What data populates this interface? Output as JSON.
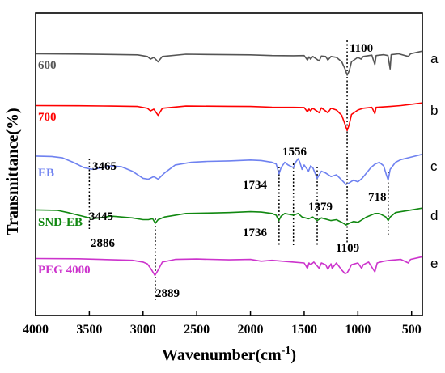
{
  "chart_data": {
    "type": "line",
    "title": "",
    "xlabel": "Wavenumber(cm",
    "xlabel_sup": "-1",
    "xlabel_close": ")",
    "ylabel": "Transmittance(%)",
    "xlim": [
      4000,
      400
    ],
    "x_reversed": true,
    "xticks": [
      4000,
      3500,
      3000,
      2500,
      2000,
      1500,
      1000,
      500
    ],
    "grid": false,
    "series": [
      {
        "name": "600",
        "letter": "a",
        "color": "#555555",
        "points": [
          [
            4000,
            0.5
          ],
          [
            3600,
            0.47
          ],
          [
            3300,
            0.43
          ],
          [
            3050,
            0.38
          ],
          [
            2960,
            0.2
          ],
          [
            2930,
            -0.1
          ],
          [
            2900,
            0.1
          ],
          [
            2860,
            -0.4
          ],
          [
            2820,
            0.2
          ],
          [
            2600,
            0.45
          ],
          [
            2200,
            0.4
          ],
          [
            2000,
            0.38
          ],
          [
            1800,
            0.3
          ],
          [
            1600,
            0.28
          ],
          [
            1500,
            0.3
          ],
          [
            1470,
            -0.2
          ],
          [
            1455,
            0.15
          ],
          [
            1440,
            -0.1
          ],
          [
            1420,
            0.2
          ],
          [
            1360,
            -0.3
          ],
          [
            1340,
            0.25
          ],
          [
            1300,
            0.2
          ],
          [
            1280,
            -0.2
          ],
          [
            1250,
            0.2
          ],
          [
            1200,
            0.1
          ],
          [
            1150,
            -0.4
          ],
          [
            1120,
            -1.2
          ],
          [
            1100,
            -1.9
          ],
          [
            1080,
            -1.4
          ],
          [
            1060,
            -0.4
          ],
          [
            1000,
            0.1
          ],
          [
            970,
            -0.1
          ],
          [
            950,
            0.2
          ],
          [
            870,
            0.35
          ],
          [
            842,
            -0.7
          ],
          [
            830,
            0.3
          ],
          [
            760,
            0.4
          ],
          [
            720,
            0.3
          ],
          [
            700,
            -1.2
          ],
          [
            690,
            0.4
          ],
          [
            620,
            0.5
          ],
          [
            530,
            0.2
          ],
          [
            510,
            0.5
          ],
          [
            400,
            0.8
          ]
        ]
      },
      {
        "name": "700",
        "letter": "b",
        "color": "#ff0000",
        "points": [
          [
            4000,
            0.5
          ],
          [
            3600,
            0.48
          ],
          [
            3300,
            0.45
          ],
          [
            3050,
            0.4
          ],
          [
            2960,
            0.2
          ],
          [
            2930,
            -0.1
          ],
          [
            2900,
            0.1
          ],
          [
            2860,
            -0.6
          ],
          [
            2820,
            0.2
          ],
          [
            2600,
            0.45
          ],
          [
            2200,
            0.42
          ],
          [
            2000,
            0.4
          ],
          [
            1800,
            0.32
          ],
          [
            1600,
            0.3
          ],
          [
            1500,
            0.28
          ],
          [
            1470,
            -0.2
          ],
          [
            1455,
            0.1
          ],
          [
            1440,
            -0.1
          ],
          [
            1420,
            0.2
          ],
          [
            1360,
            -0.3
          ],
          [
            1340,
            0.25
          ],
          [
            1280,
            -0.3
          ],
          [
            1250,
            0.2
          ],
          [
            1200,
            0.0
          ],
          [
            1150,
            -0.6
          ],
          [
            1120,
            -1.6
          ],
          [
            1100,
            -2.3
          ],
          [
            1080,
            -1.6
          ],
          [
            1060,
            -0.5
          ],
          [
            1000,
            0.0
          ],
          [
            950,
            0.2
          ],
          [
            870,
            0.3
          ],
          [
            842,
            -0.4
          ],
          [
            830,
            0.3
          ],
          [
            700,
            0.4
          ],
          [
            600,
            0.5
          ],
          [
            400,
            0.8
          ]
        ]
      },
      {
        "name": "EB",
        "letter": "c",
        "color": "#6f82f0",
        "points": [
          [
            4000,
            1.1
          ],
          [
            3850,
            1.05
          ],
          [
            3750,
            0.9
          ],
          [
            3650,
            0.4
          ],
          [
            3550,
            -0.2
          ],
          [
            3465,
            -0.4
          ],
          [
            3380,
            -0.2
          ],
          [
            3300,
            0.0
          ],
          [
            3200,
            -0.1
          ],
          [
            3100,
            -0.6
          ],
          [
            3000,
            -1.4
          ],
          [
            2950,
            -1.5
          ],
          [
            2900,
            -1.2
          ],
          [
            2860,
            -1.5
          ],
          [
            2800,
            -0.8
          ],
          [
            2700,
            0.1
          ],
          [
            2550,
            0.4
          ],
          [
            2400,
            0.5
          ],
          [
            2200,
            0.55
          ],
          [
            2000,
            0.65
          ],
          [
            1900,
            0.6
          ],
          [
            1800,
            0.4
          ],
          [
            1760,
            0.2
          ],
          [
            1734,
            -0.9
          ],
          [
            1715,
            -0.2
          ],
          [
            1680,
            0.4
          ],
          [
            1650,
            0.1
          ],
          [
            1600,
            -0.2
          ],
          [
            1580,
            0.4
          ],
          [
            1556,
            0.8
          ],
          [
            1540,
            0.4
          ],
          [
            1520,
            -0.4
          ],
          [
            1500,
            0.1
          ],
          [
            1460,
            -0.6
          ],
          [
            1440,
            0.0
          ],
          [
            1420,
            -0.2
          ],
          [
            1379,
            -1.4
          ],
          [
            1340,
            -0.6
          ],
          [
            1300,
            -0.8
          ],
          [
            1250,
            -1.2
          ],
          [
            1200,
            -1.0
          ],
          [
            1150,
            -1.6
          ],
          [
            1110,
            -2.1
          ],
          [
            1080,
            -1.9
          ],
          [
            1040,
            -1.6
          ],
          [
            1000,
            -1.8
          ],
          [
            960,
            -1.4
          ],
          [
            920,
            -0.8
          ],
          [
            880,
            -0.2
          ],
          [
            840,
            0.2
          ],
          [
            800,
            0.4
          ],
          [
            760,
            0.0
          ],
          [
            735,
            -1.0
          ],
          [
            718,
            -1.6
          ],
          [
            700,
            -0.4
          ],
          [
            650,
            0.4
          ],
          [
            600,
            0.7
          ],
          [
            500,
            1.0
          ],
          [
            400,
            1.3
          ]
        ]
      },
      {
        "name": "SND-EB",
        "letter": "d",
        "color": "#118811",
        "points": [
          [
            4000,
            0.6
          ],
          [
            3800,
            0.55
          ],
          [
            3700,
            0.3
          ],
          [
            3600,
            0.0
          ],
          [
            3500,
            -0.3
          ],
          [
            3445,
            -0.35
          ],
          [
            3380,
            -0.25
          ],
          [
            3300,
            -0.1
          ],
          [
            3200,
            -0.2
          ],
          [
            3100,
            -0.3
          ],
          [
            3000,
            -0.5
          ],
          [
            2950,
            -0.5
          ],
          [
            2910,
            -0.4
          ],
          [
            2886,
            -0.9
          ],
          [
            2860,
            -0.5
          ],
          [
            2800,
            -0.2
          ],
          [
            2600,
            0.2
          ],
          [
            2400,
            0.25
          ],
          [
            2200,
            0.3
          ],
          [
            2000,
            0.4
          ],
          [
            1900,
            0.35
          ],
          [
            1800,
            0.2
          ],
          [
            1760,
            0.0
          ],
          [
            1736,
            -0.6
          ],
          [
            1715,
            -0.1
          ],
          [
            1680,
            0.2
          ],
          [
            1600,
            0.0
          ],
          [
            1556,
            0.2
          ],
          [
            1520,
            -0.2
          ],
          [
            1460,
            -0.4
          ],
          [
            1420,
            -0.2
          ],
          [
            1379,
            -0.6
          ],
          [
            1340,
            -0.3
          ],
          [
            1250,
            -0.6
          ],
          [
            1200,
            -0.5
          ],
          [
            1150,
            -0.8
          ],
          [
            1109,
            -1.1
          ],
          [
            1080,
            -0.9
          ],
          [
            1040,
            -0.7
          ],
          [
            1000,
            -0.8
          ],
          [
            960,
            -0.5
          ],
          [
            920,
            -0.2
          ],
          [
            880,
            0.0
          ],
          [
            840,
            0.2
          ],
          [
            800,
            0.2
          ],
          [
            740,
            -0.2
          ],
          [
            718,
            -0.6
          ],
          [
            700,
            -0.2
          ],
          [
            650,
            0.3
          ],
          [
            600,
            0.4
          ],
          [
            500,
            0.6
          ],
          [
            400,
            0.8
          ]
        ]
      },
      {
        "name": "PEG 4000",
        "letter": "e",
        "color": "#cc33cc",
        "points": [
          [
            4000,
            0.5
          ],
          [
            3600,
            0.47
          ],
          [
            3400,
            0.4
          ],
          [
            3100,
            0.3
          ],
          [
            3000,
            0.1
          ],
          [
            2960,
            -0.1
          ],
          [
            2930,
            -0.6
          ],
          [
            2889,
            -1.4
          ],
          [
            2860,
            -0.8
          ],
          [
            2820,
            0.1
          ],
          [
            2700,
            0.4
          ],
          [
            2500,
            0.45
          ],
          [
            2200,
            0.35
          ],
          [
            2000,
            0.4
          ],
          [
            1900,
            0.2
          ],
          [
            1800,
            0.3
          ],
          [
            1700,
            0.2
          ],
          [
            1600,
            0.1
          ],
          [
            1500,
            0.0
          ],
          [
            1470,
            -0.6
          ],
          [
            1455,
            0.0
          ],
          [
            1440,
            -0.2
          ],
          [
            1410,
            0.1
          ],
          [
            1360,
            -0.6
          ],
          [
            1340,
            0.0
          ],
          [
            1300,
            -0.2
          ],
          [
            1280,
            -0.7
          ],
          [
            1250,
            -0.1
          ],
          [
            1240,
            -0.6
          ],
          [
            1200,
            0.0
          ],
          [
            1150,
            -0.8
          ],
          [
            1120,
            -1.2
          ],
          [
            1100,
            -1.1
          ],
          [
            1080,
            -0.7
          ],
          [
            1060,
            -0.2
          ],
          [
            1000,
            0.0
          ],
          [
            965,
            -0.6
          ],
          [
            950,
            -0.2
          ],
          [
            900,
            0.1
          ],
          [
            842,
            -1.0
          ],
          [
            820,
            0.0
          ],
          [
            760,
            0.2
          ],
          [
            700,
            0.3
          ],
          [
            600,
            0.4
          ],
          [
            530,
            0.0
          ],
          [
            510,
            0.4
          ],
          [
            400,
            0.7
          ]
        ]
      }
    ],
    "annotations": [
      {
        "text": "1100",
        "x": 1100
      },
      {
        "text": "3465",
        "x": 3465
      },
      {
        "text": "1556",
        "x": 1556
      },
      {
        "text": "1734",
        "x": 1734
      },
      {
        "text": "1379",
        "x": 1379
      },
      {
        "text": "718",
        "x": 718
      },
      {
        "text": "3445",
        "x": 3445
      },
      {
        "text": "2886",
        "x": 2886
      },
      {
        "text": "1736",
        "x": 1736
      },
      {
        "text": "1109",
        "x": 1109
      },
      {
        "text": "2889",
        "x": 2889
      }
    ]
  }
}
